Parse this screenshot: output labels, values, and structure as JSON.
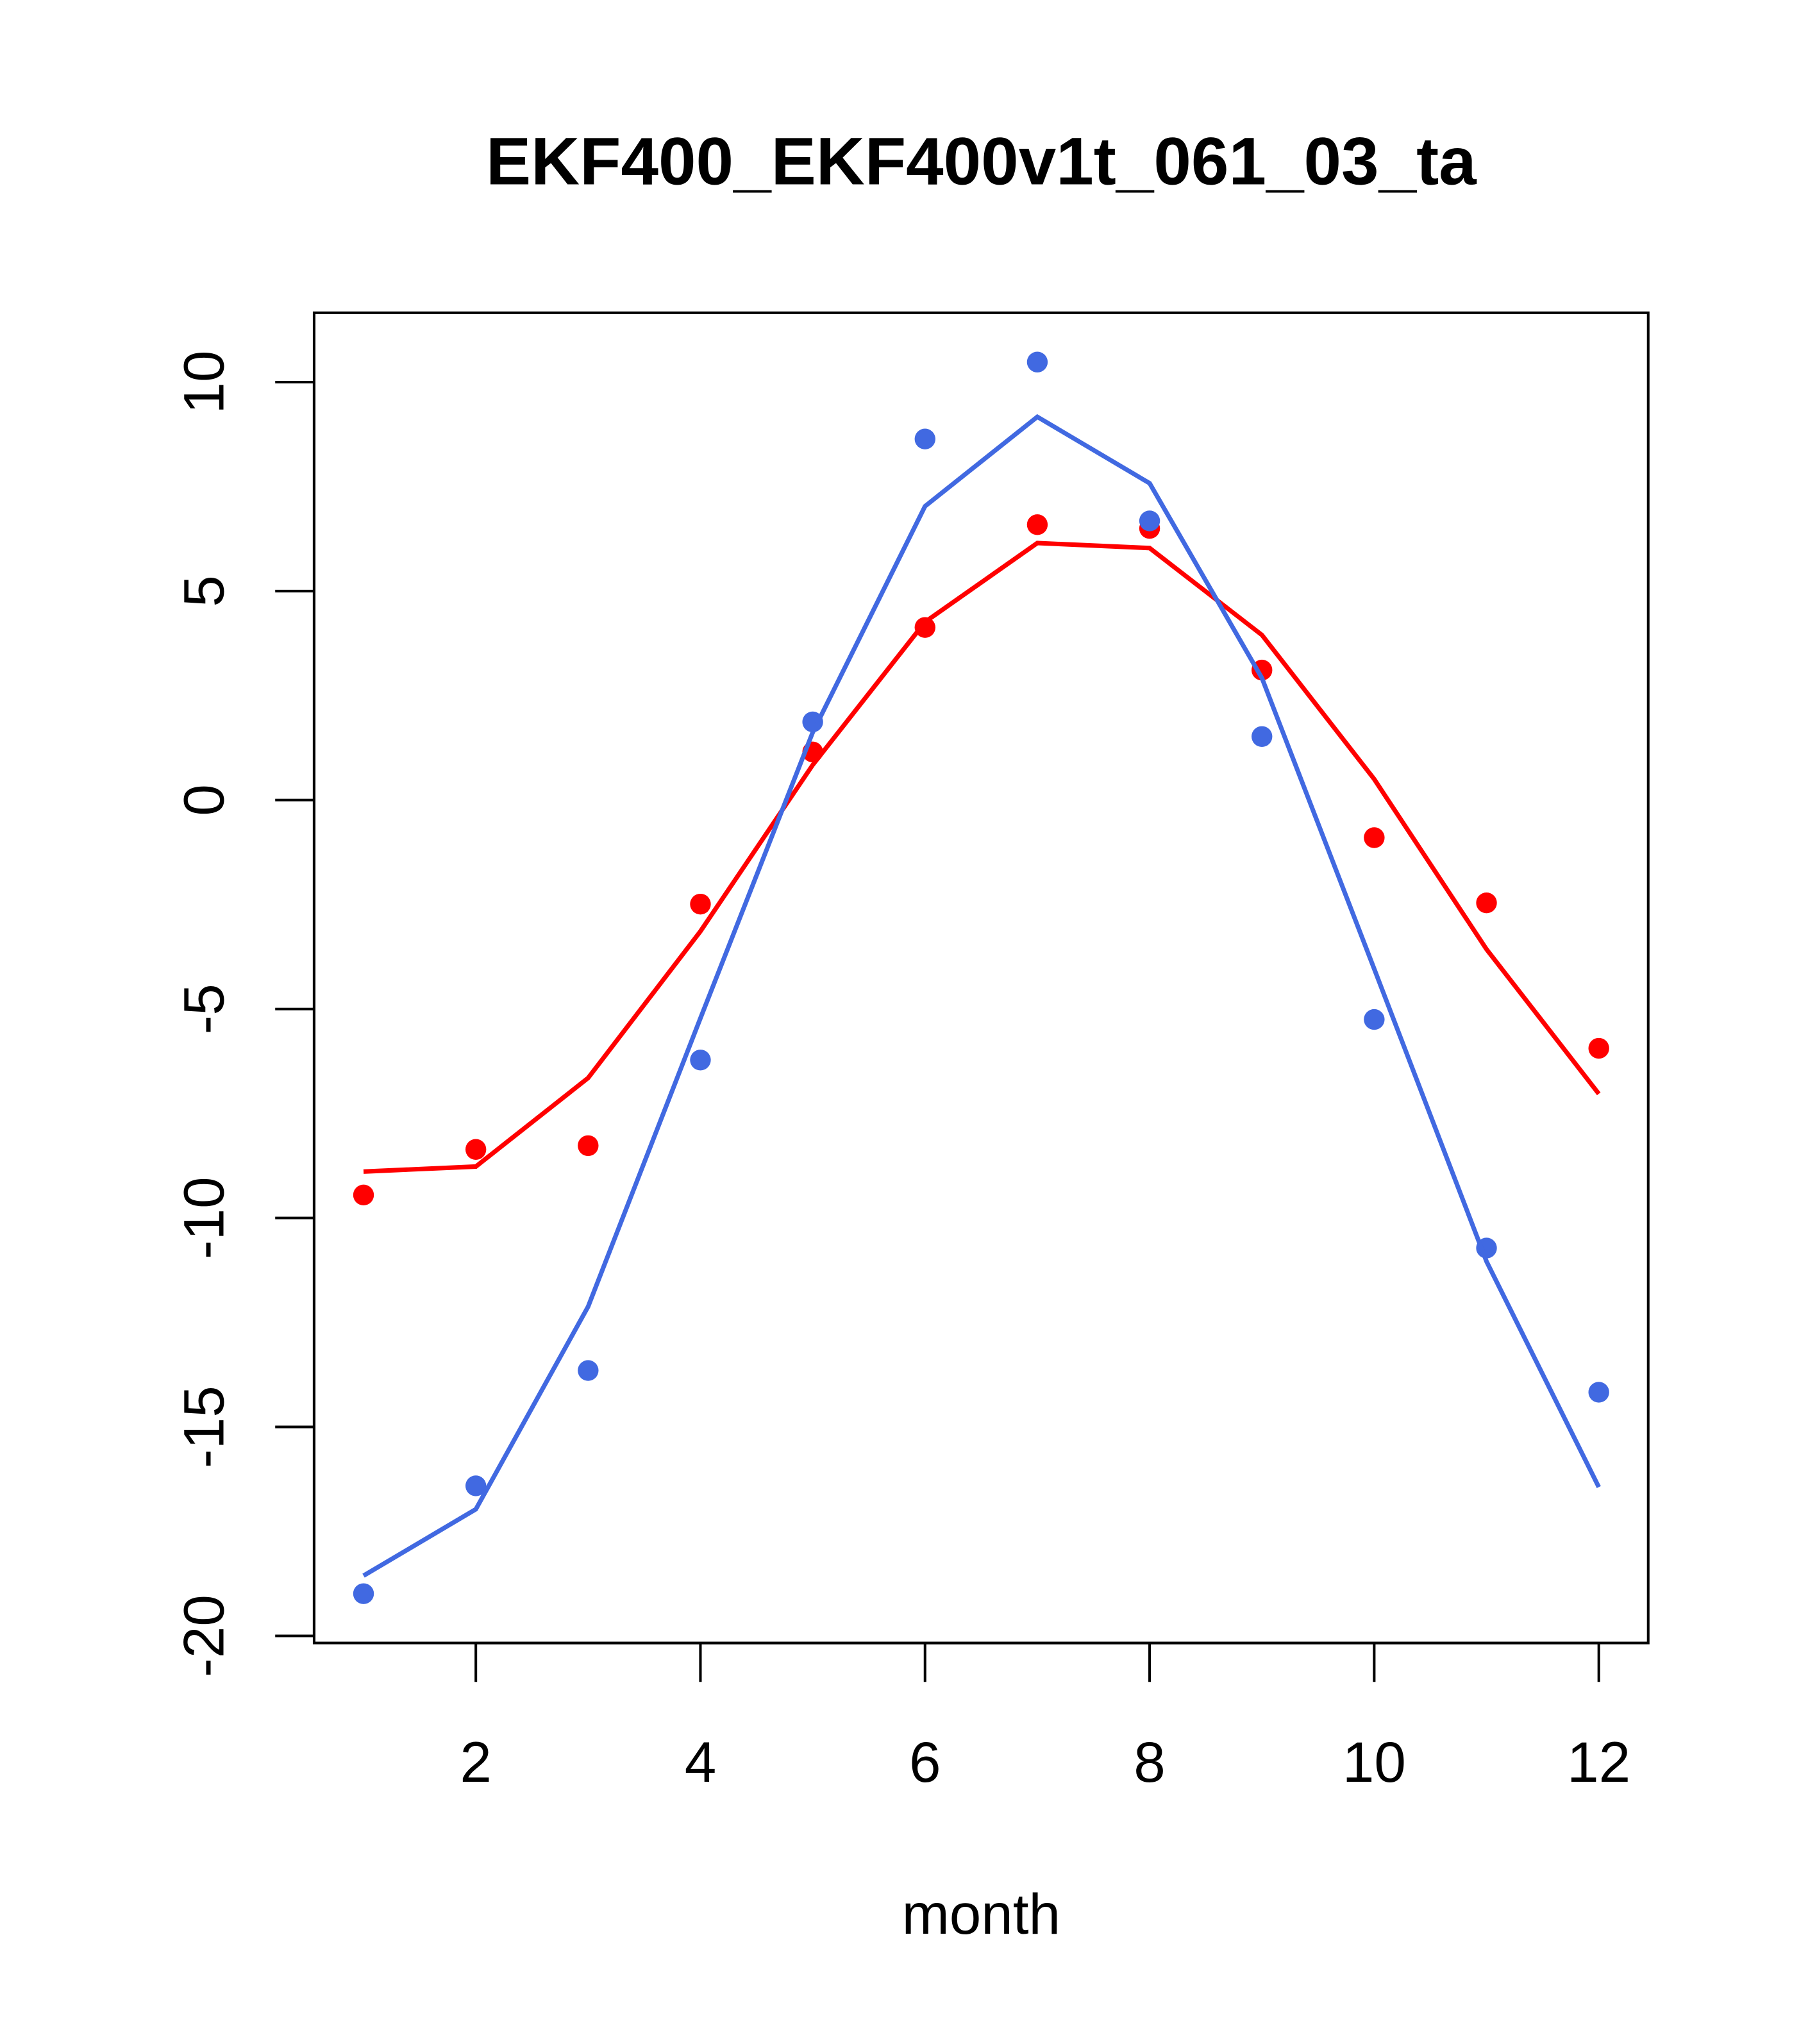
{
  "chart_data": {
    "type": "line",
    "title": "EKF400_EKF400v1t_061_03_ta",
    "xlabel": "month",
    "ylabel": "",
    "xlim": [
      0.56,
      12.44
    ],
    "ylim": [
      -20.17,
      11.66
    ],
    "xticks": [
      2,
      4,
      6,
      8,
      10,
      12
    ],
    "yticks": [
      -20,
      -15,
      -10,
      -5,
      0,
      5,
      10
    ],
    "grid": false,
    "x": [
      1,
      2,
      3,
      4,
      5,
      6,
      7,
      8,
      9,
      10,
      11,
      12
    ],
    "series": [
      {
        "name": "red-points",
        "kind": "points",
        "color": "#ff0000",
        "values": [
          -9.45,
          -8.36,
          -8.27,
          -2.49,
          1.15,
          4.13,
          6.59,
          6.5,
          3.11,
          -0.9,
          -2.46,
          -5.94
        ]
      },
      {
        "name": "red-line",
        "kind": "line",
        "color": "#ff0000",
        "values": [
          -8.89,
          -8.77,
          -6.65,
          -3.14,
          0.84,
          4.26,
          6.15,
          6.03,
          3.95,
          0.5,
          -3.57,
          -7.03
        ]
      },
      {
        "name": "blue-points",
        "kind": "points",
        "color": "#4169e1",
        "values": [
          -18.99,
          -16.41,
          -13.65,
          -6.22,
          1.87,
          8.64,
          10.48,
          6.68,
          1.52,
          -5.25,
          -10.72,
          -14.17
        ]
      },
      {
        "name": "blue-line",
        "kind": "line",
        "color": "#4169e1",
        "values": [
          -18.56,
          -16.97,
          -12.12,
          -5.22,
          1.62,
          7.03,
          9.17,
          7.58,
          2.92,
          -4.04,
          -11.04,
          -16.44
        ]
      }
    ]
  }
}
